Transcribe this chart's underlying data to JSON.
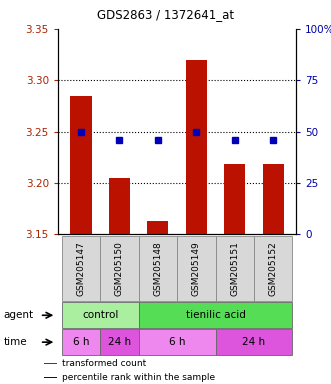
{
  "title": "GDS2863 / 1372641_at",
  "samples": [
    "GSM205147",
    "GSM205150",
    "GSM205148",
    "GSM205149",
    "GSM205151",
    "GSM205152"
  ],
  "bar_values": [
    3.285,
    3.205,
    3.163,
    3.32,
    3.218,
    3.218
  ],
  "percentile_values": [
    50,
    46,
    46,
    50,
    46,
    46
  ],
  "ylim_left": [
    3.15,
    3.35
  ],
  "ylim_right": [
    0,
    100
  ],
  "yticks_left": [
    3.15,
    3.2,
    3.25,
    3.3,
    3.35
  ],
  "yticks_right": [
    0,
    25,
    50,
    75,
    100
  ],
  "hlines": [
    3.2,
    3.25,
    3.3
  ],
  "bar_color": "#bb1100",
  "dot_color": "#0000bb",
  "agent_groups": [
    {
      "label": "control",
      "start": 0,
      "end": 2,
      "color": "#aaeea0"
    },
    {
      "label": "tienilic acid",
      "start": 2,
      "end": 6,
      "color": "#55dd55"
    }
  ],
  "time_groups": [
    {
      "label": "6 h",
      "start": 0,
      "end": 1,
      "color": "#ee88ee"
    },
    {
      "label": "24 h",
      "start": 1,
      "end": 2,
      "color": "#dd55dd"
    },
    {
      "label": "6 h",
      "start": 2,
      "end": 4,
      "color": "#ee88ee"
    },
    {
      "label": "24 h",
      "start": 4,
      "end": 6,
      "color": "#dd55dd"
    }
  ],
  "left_tick_color": "#aa2200",
  "right_tick_color": "#0000aa",
  "legend_items": [
    {
      "label": "transformed count",
      "color": "#bb1100"
    },
    {
      "label": "percentile rank within the sample",
      "color": "#0000bb"
    }
  ],
  "sample_box_color": "#d8d8d8",
  "bar_width": 0.55
}
